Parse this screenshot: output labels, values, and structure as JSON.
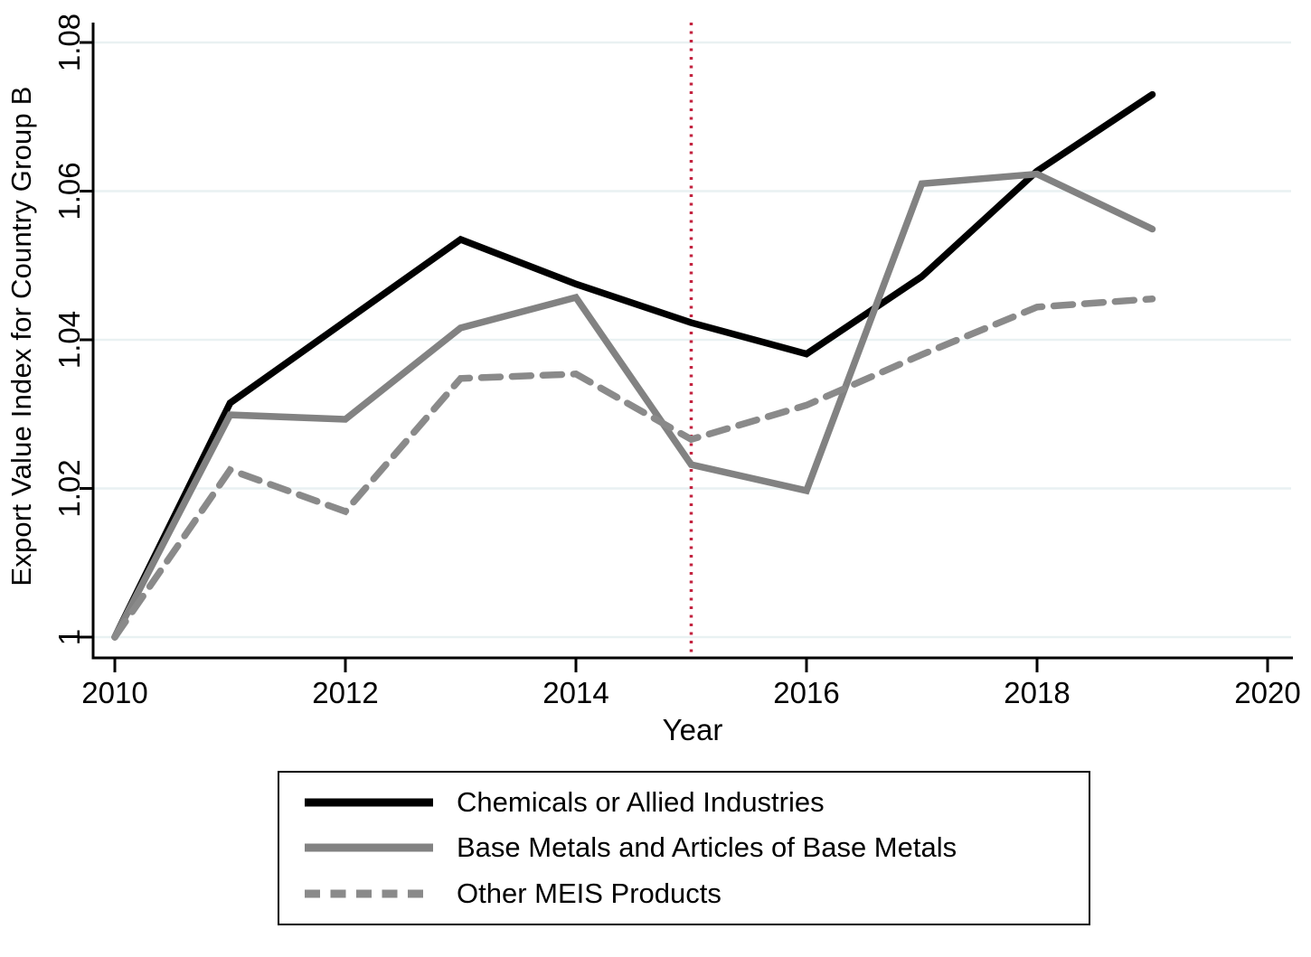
{
  "figure": {
    "y_axis_title": "Export Value Index for Country Group B",
    "x_axis_title": "Year"
  },
  "chart_data": {
    "type": "line",
    "title": "",
    "xlabel": "Year",
    "ylabel": "Export Value Index for Country Group B",
    "x": [
      2010,
      2011,
      2012,
      2013,
      2014,
      2015,
      2016,
      2017,
      2018,
      2019
    ],
    "series": [
      {
        "name": "Chemicals or Allied Industries",
        "color": "#000000",
        "style": "solid",
        "values": [
          1.0,
          1.0315,
          1.0425,
          1.0535,
          1.0475,
          1.0423,
          1.0381,
          1.0485,
          1.0627,
          1.073
        ]
      },
      {
        "name": "Base Metals and Articles of Base Metals",
        "color": "#828282",
        "style": "solid",
        "values": [
          1.0,
          1.0299,
          1.0293,
          1.0416,
          1.0457,
          1.0232,
          1.0197,
          1.061,
          1.0623,
          1.0549
        ]
      },
      {
        "name": "Other MEIS Products",
        "color": "#8a8a8a",
        "style": "dashed",
        "values": [
          1.0,
          1.0225,
          1.0169,
          1.0348,
          1.0354,
          1.0266,
          1.0312,
          1.038,
          1.0444,
          1.0455
        ]
      }
    ],
    "xlim": [
      2010,
      2020
    ],
    "ylim": [
      1.0,
      1.08
    ],
    "x_ticks": [
      2010,
      2012,
      2014,
      2016,
      2018,
      2020
    ],
    "y_ticks": [
      1.0,
      1.02,
      1.04,
      1.06,
      1.08
    ],
    "y_tick_labels": [
      "1",
      "1.02",
      "1.04",
      "1.06",
      "1.08"
    ],
    "grid": true,
    "reference_line": {
      "axis": "x",
      "value": 2015,
      "style": "dotted",
      "color": "#c32440"
    },
    "legend_position": "bottom"
  },
  "colors": {
    "background": "#ffffff",
    "grid": "#e9f1f2",
    "axis": "#000000",
    "series_black": "#000000",
    "series_gray": "#828282",
    "reference_red": "#c32440"
  }
}
